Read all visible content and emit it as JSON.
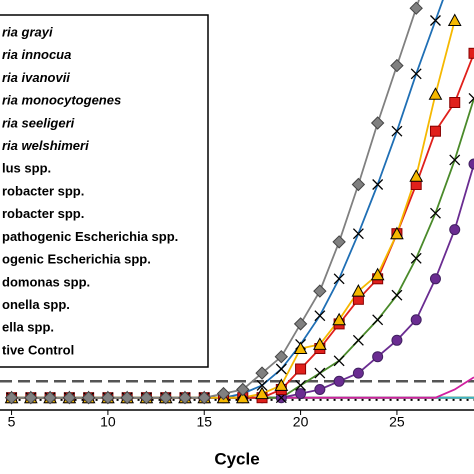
{
  "chart_data": {
    "type": "line",
    "x_label": "Cycle",
    "x": [
      5,
      6,
      7,
      8,
      9,
      10,
      11,
      12,
      13,
      14,
      15,
      16,
      17,
      18,
      19,
      20,
      21,
      22,
      23,
      24,
      25,
      26,
      27,
      28,
      29
    ],
    "xlim": [
      4.4,
      29
    ],
    "xticks": [
      5,
      10,
      15,
      20,
      25
    ],
    "ylim": [
      0,
      1
    ],
    "threshold": 0.07,
    "series": [
      {
        "name": "ria grayi",
        "color": "#808080",
        "marker": "diamond",
        "values": [
          0.03,
          0.03,
          0.03,
          0.03,
          0.03,
          0.03,
          0.03,
          0.03,
          0.03,
          0.03,
          0.03,
          0.04,
          0.05,
          0.09,
          0.13,
          0.21,
          0.29,
          0.41,
          0.55,
          0.7,
          0.84,
          0.98,
          1.12,
          null,
          null
        ]
      },
      {
        "name": "ria innocua",
        "color": "#f5b800",
        "marker": "triangle",
        "values": [
          0.03,
          0.03,
          0.03,
          0.03,
          0.03,
          0.03,
          0.03,
          0.03,
          0.03,
          0.03,
          0.03,
          0.03,
          0.03,
          0.04,
          0.06,
          0.15,
          0.16,
          0.22,
          0.29,
          0.33,
          0.43,
          0.57,
          0.77,
          0.95,
          null
        ]
      },
      {
        "name": "ria ivanovii",
        "color": "#1f6fb5",
        "marker": "x",
        "values": [
          0.03,
          0.03,
          0.03,
          0.03,
          0.03,
          0.03,
          0.03,
          0.03,
          0.03,
          0.03,
          0.03,
          0.03,
          0.04,
          0.06,
          0.1,
          0.16,
          0.23,
          0.32,
          0.43,
          0.55,
          0.68,
          0.82,
          0.95,
          1.08,
          null
        ]
      },
      {
        "name": "ria monocytogenes",
        "color": "#e0201b",
        "marker": "square",
        "values": [
          0.03,
          0.03,
          0.03,
          0.03,
          0.03,
          0.03,
          0.03,
          0.03,
          0.03,
          0.03,
          0.03,
          0.03,
          0.03,
          0.03,
          0.05,
          0.1,
          0.15,
          0.21,
          0.27,
          0.32,
          0.43,
          0.55,
          0.68,
          0.75,
          0.87
        ]
      },
      {
        "name": "ria seeligeri",
        "color": "#4a8a2a",
        "marker": "x",
        "values": [
          0.03,
          0.03,
          0.03,
          0.03,
          0.03,
          0.03,
          0.03,
          0.03,
          0.03,
          0.03,
          0.03,
          0.03,
          0.03,
          0.03,
          0.03,
          0.06,
          0.09,
          0.12,
          0.17,
          0.22,
          0.28,
          0.37,
          0.48,
          0.61,
          0.76
        ]
      },
      {
        "name": "ria welshimeri",
        "color": "#6a2c91",
        "marker": "circle",
        "values": [
          0.03,
          0.03,
          0.03,
          0.03,
          0.03,
          0.03,
          0.03,
          0.03,
          0.03,
          0.03,
          0.03,
          0.03,
          0.03,
          0.03,
          0.03,
          0.04,
          0.05,
          0.07,
          0.09,
          0.13,
          0.17,
          0.22,
          0.32,
          0.44,
          0.6
        ]
      },
      {
        "name": "lus spp.",
        "color": "#d020a0",
        "values": [
          0.03,
          0.03,
          0.03,
          0.03,
          0.03,
          0.03,
          0.03,
          0.03,
          0.03,
          0.03,
          0.03,
          0.03,
          0.03,
          0.03,
          0.03,
          0.03,
          0.03,
          0.03,
          0.03,
          0.03,
          0.03,
          0.03,
          0.03,
          0.05,
          0.08
        ]
      },
      {
        "name": "robacter spp.",
        "color": "#3cb4c8",
        "values": [
          0.03,
          0.03,
          0.03,
          0.03,
          0.03,
          0.03,
          0.03,
          0.03,
          0.03,
          0.03,
          0.03,
          0.03,
          0.03,
          0.03,
          0.03,
          0.03,
          0.03,
          0.03,
          0.03,
          0.03,
          0.03,
          0.03,
          0.03,
          0.03,
          0.03
        ]
      },
      {
        "name": "robacter spp.",
        "color": "#8cc63f",
        "values": [
          0.03,
          0.03,
          0.03,
          0.03,
          0.03,
          0.03,
          0.03,
          0.03,
          0.03,
          0.03,
          0.03,
          0.03,
          0.03,
          0.03,
          0.03,
          0.03,
          0.03,
          0.03,
          0.03,
          0.03,
          0.03,
          0.03,
          0.03,
          0.03,
          0.03
        ]
      },
      {
        "name": "pathogenic Escherichia spp.",
        "color": "#9b6a3c",
        "values": [
          0.03,
          0.03,
          0.03,
          0.03,
          0.03,
          0.03,
          0.03,
          0.03,
          0.03,
          0.03,
          0.03,
          0.03,
          0.03,
          0.03,
          0.03,
          0.03,
          0.03,
          0.03,
          0.03,
          0.03,
          0.03,
          0.03,
          0.03,
          0.03,
          0.03
        ]
      },
      {
        "name": "ogenic Escherichia spp.",
        "color": "#f08030",
        "values": [
          0.03,
          0.03,
          0.03,
          0.03,
          0.03,
          0.03,
          0.03,
          0.03,
          0.03,
          0.03,
          0.03,
          0.03,
          0.03,
          0.03,
          0.03,
          0.03,
          0.03,
          0.03,
          0.03,
          0.03,
          0.03,
          0.03,
          0.03,
          0.03,
          0.03
        ]
      },
      {
        "name": "domonas spp.",
        "color": "#2050a0",
        "values": [
          0.03,
          0.03,
          0.03,
          0.03,
          0.03,
          0.03,
          0.03,
          0.03,
          0.03,
          0.03,
          0.03,
          0.03,
          0.03,
          0.03,
          0.03,
          0.03,
          0.03,
          0.03,
          0.03,
          0.03,
          0.03,
          0.03,
          0.03,
          0.03,
          0.03
        ]
      },
      {
        "name": "onella spp.",
        "color": "#a0a0a0",
        "values": [
          0.03,
          0.03,
          0.03,
          0.03,
          0.03,
          0.03,
          0.03,
          0.03,
          0.03,
          0.03,
          0.03,
          0.03,
          0.03,
          0.03,
          0.03,
          0.03,
          0.03,
          0.03,
          0.03,
          0.03,
          0.03,
          0.03,
          0.03,
          0.03,
          0.03
        ]
      },
      {
        "name": "ella spp.",
        "color": "#40a080",
        "values": [
          0.03,
          0.03,
          0.03,
          0.03,
          0.03,
          0.03,
          0.03,
          0.03,
          0.03,
          0.03,
          0.03,
          0.03,
          0.03,
          0.03,
          0.03,
          0.03,
          0.03,
          0.03,
          0.03,
          0.03,
          0.03,
          0.03,
          0.03,
          0.03,
          0.03
        ]
      },
      {
        "name": "tive Control",
        "color": "#000000",
        "dashed": true,
        "values": [
          0.025,
          0.025,
          0.025,
          0.025,
          0.025,
          0.025,
          0.025,
          0.025,
          0.025,
          0.025,
          0.025,
          0.025,
          0.025,
          0.025,
          0.025,
          0.025,
          0.025,
          0.025,
          0.025,
          0.025,
          0.025,
          0.025,
          0.025,
          0.025,
          0.025
        ]
      }
    ]
  }
}
